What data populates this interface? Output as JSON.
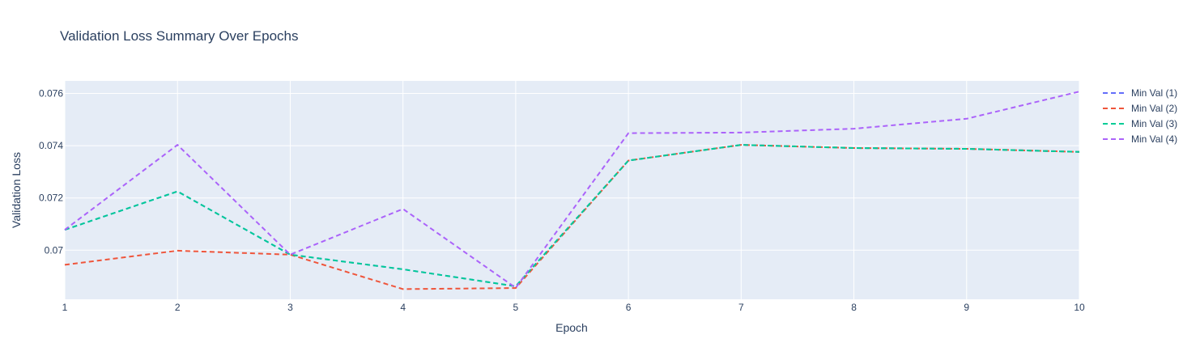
{
  "chart_data": {
    "type": "line",
    "title": "Validation Loss Summary Over Epochs",
    "xlabel": "Epoch",
    "ylabel": "Validation Loss",
    "x": [
      1,
      2,
      3,
      4,
      5,
      6,
      7,
      8,
      9,
      10
    ],
    "xlim": [
      1,
      10
    ],
    "ylim": [
      0.06812,
      0.07648
    ],
    "yticks": [
      0.07,
      0.072,
      0.074,
      0.076
    ],
    "ytick_labels": [
      "0.07",
      "0.072",
      "0.074",
      "0.076"
    ],
    "grid": true,
    "legend_position": "top-right",
    "line_style": "dashed",
    "colors": {
      "plot_background": "#e5ecf6",
      "grid": "#ffffff",
      "text": "#2a3f5f"
    },
    "series": [
      {
        "name": "Min Val (1)",
        "color": "#636efa",
        "values": [
          0.07078,
          0.07225,
          0.06983,
          0.06927,
          0.06862,
          0.07343,
          0.07403,
          0.07391,
          0.07388,
          0.07376
        ]
      },
      {
        "name": "Min Val (2)",
        "color": "#ef553b",
        "values": [
          0.06944,
          0.06998,
          0.06983,
          0.06851,
          0.06855,
          0.07343,
          0.07403,
          0.07391,
          0.07388,
          0.07376
        ]
      },
      {
        "name": "Min Val (3)",
        "color": "#00cc96",
        "values": [
          0.07078,
          0.07225,
          0.06983,
          0.06927,
          0.06862,
          0.07343,
          0.07403,
          0.07391,
          0.07388,
          0.07376
        ]
      },
      {
        "name": "Min Val (4)",
        "color": "#ab63fa",
        "values": [
          0.07078,
          0.07403,
          0.06983,
          0.07158,
          0.06856,
          0.07448,
          0.0745,
          0.07465,
          0.07503,
          0.07607
        ]
      }
    ]
  }
}
